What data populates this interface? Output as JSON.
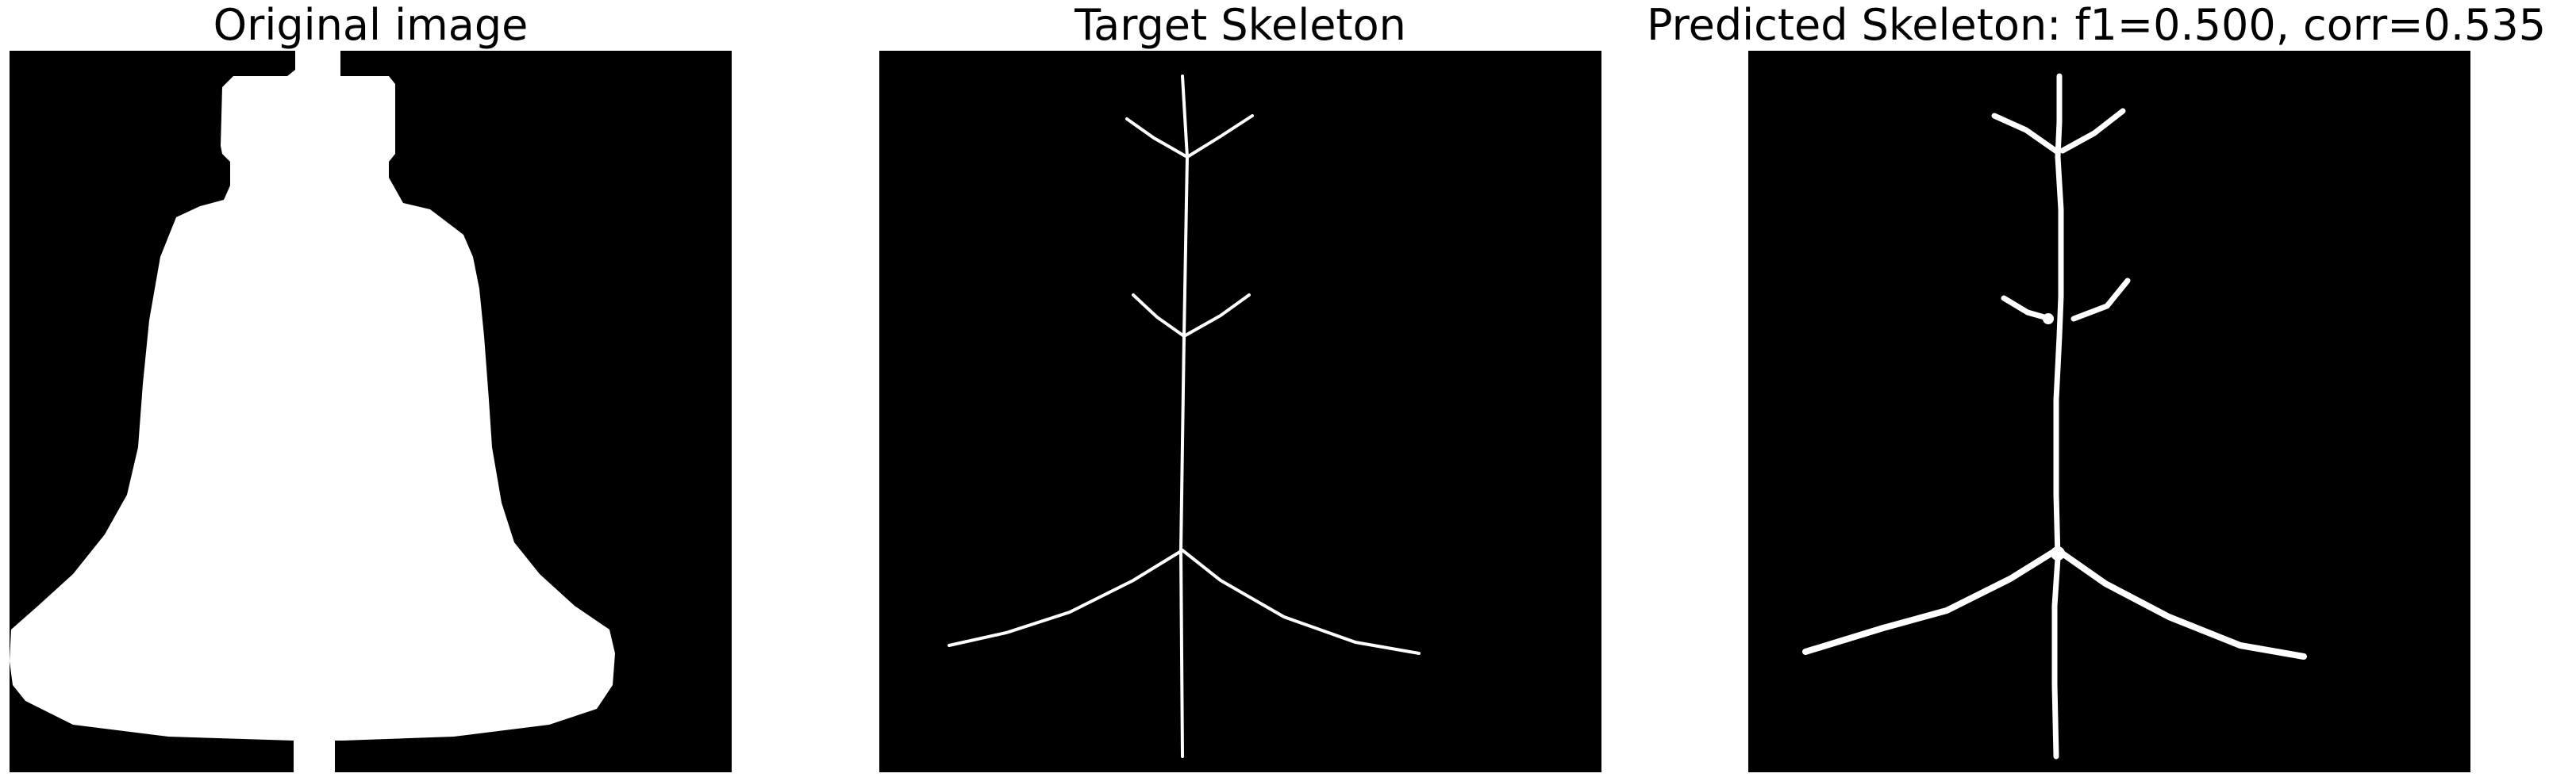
{
  "panels": [
    {
      "title": "Original image"
    },
    {
      "title": "Target Skeleton"
    },
    {
      "title": "Predicted Skeleton: f1=0.500, corr=0.535"
    }
  ],
  "colors": {
    "background": "#000000",
    "foreground": "#ffffff",
    "figure_background": "#ffffff"
  }
}
